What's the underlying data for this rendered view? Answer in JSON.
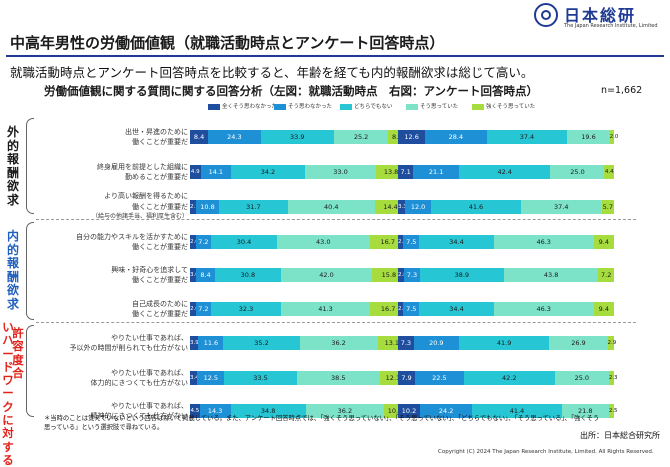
{
  "header": {
    "title": "中高年男性の労働価値観（就職活動時点とアンケート回答時点）",
    "logo_name": "日本総研",
    "logo_en": "The Japan Research Institute, Limited",
    "lead": "就職活動時点とアンケート回答時点を比較すると、年齢を経ても内的報酬欲求は総じて高い。"
  },
  "colors": {
    "series": [
      "#1f4e9e",
      "#1e90d6",
      "#27c6d4",
      "#7de3c8",
      "#a6dc3e"
    ],
    "category_external": "#1a1a1a",
    "category_internal": "#1f5fbf",
    "category_tolerance": "#e2231a"
  },
  "footnote": "＊当時のことは覚えていないという回答は除いて掲載している。また、アンケート回答時点では、「強くそう思っていない」、「そう思っていない」、「どちらでもない」、「そう思っている」、「強くそう思っている」という選択肢で尋ねている。",
  "source": "出所：日本総合研究所",
  "copyright": "Copyright (C) 2024  The Japan Research Institute, Limited. All Rights Reserved.",
  "chart_data": {
    "type": "bar",
    "stacked": true,
    "orientation": "horizontal",
    "unit": "%",
    "title": "労働価値観に関する質問に関する回答分析（左図：就職活動時点　右図：アンケート回答時点）",
    "n_label": "n=1,662",
    "legend": [
      "全くそう思わなかった",
      "そう思わなかった",
      "どちらでもない",
      "そう思っていた",
      "強くそう思っていた"
    ],
    "legend_placement": "top",
    "xlim": [
      0,
      100
    ],
    "categories": [
      {
        "label": "外的報酬欲求",
        "key": "external",
        "rows": [
          0,
          1,
          2
        ]
      },
      {
        "label": "内的報酬欲求",
        "key": "internal",
        "rows": [
          3,
          4,
          5
        ]
      },
      {
        "label": "許容度合いハードワークに対する",
        "key": "tolerance",
        "rows": [
          6,
          7,
          8
        ]
      }
    ],
    "items": [
      {
        "label": [
          "出世・昇進のために",
          "働くことが重要だ"
        ],
        "left": [
          8.4,
          24.3,
          33.9,
          25.2,
          8.2
        ],
        "right": [
          12.6,
          28.4,
          37.4,
          19.6,
          2.0
        ]
      },
      {
        "label": [
          "終身雇用を前提とした組織に",
          "勤めることが重要だ"
        ],
        "left": [
          4.9,
          14.1,
          34.2,
          33.0,
          13.8
        ],
        "right": [
          7.1,
          21.1,
          42.4,
          25.0,
          4.4
        ]
      },
      {
        "label": [
          "より高い報酬を得るために",
          "働くことが重要だ",
          "（給与の他諸手当、福利厚生含む）"
        ],
        "left": [
          2.7,
          10.8,
          31.7,
          40.4,
          14.4
        ],
        "right": [
          3.3,
          12.0,
          41.6,
          37.4,
          5.7
        ]
      },
      {
        "label": [
          "自分の能力やスキルを活かすために",
          "働くことが重要だ"
        ],
        "left": [
          2.6,
          7.2,
          30.4,
          43.0,
          16.7
        ],
        "right": [
          2.4,
          7.5,
          34.4,
          46.3,
          9.4
        ]
      },
      {
        "label": [
          "興味・好奇心を追求して",
          "働くことが重要だ"
        ],
        "left": [
          3.0,
          8.4,
          30.8,
          42.0,
          15.8
        ],
        "right": [
          2.8,
          7.3,
          38.9,
          43.8,
          7.2
        ]
      },
      {
        "label": [
          "自己成長のために",
          "働くことが重要だ"
        ],
        "left": [
          2.6,
          7.2,
          32.3,
          41.3,
          16.7
        ],
        "right": [
          2.4,
          7.5,
          34.4,
          46.3,
          9.4
        ]
      },
      {
        "label": [
          "やりたい仕事であれば、",
          "予以外の時間が削られても仕方がない"
        ],
        "left": [
          3.9,
          11.6,
          35.2,
          36.2,
          13.1
        ],
        "right": [
          7.3,
          20.9,
          41.9,
          26.9,
          2.9
        ]
      },
      {
        "label": [
          "やりたい仕事であれば、",
          "体力的にきつくても仕方がない"
        ],
        "left": [
          3.4,
          12.5,
          33.5,
          38.5,
          12.1
        ],
        "right": [
          7.9,
          22.5,
          42.2,
          25.0,
          2.3
        ]
      },
      {
        "label": [
          "やりたい仕事であれば、",
          "精神的にきつくても仕方がない"
        ],
        "left": [
          4.5,
          14.3,
          34.8,
          36.2,
          10.2
        ],
        "right": [
          10.2,
          24.2,
          41.4,
          21.8,
          2.5
        ]
      }
    ]
  }
}
